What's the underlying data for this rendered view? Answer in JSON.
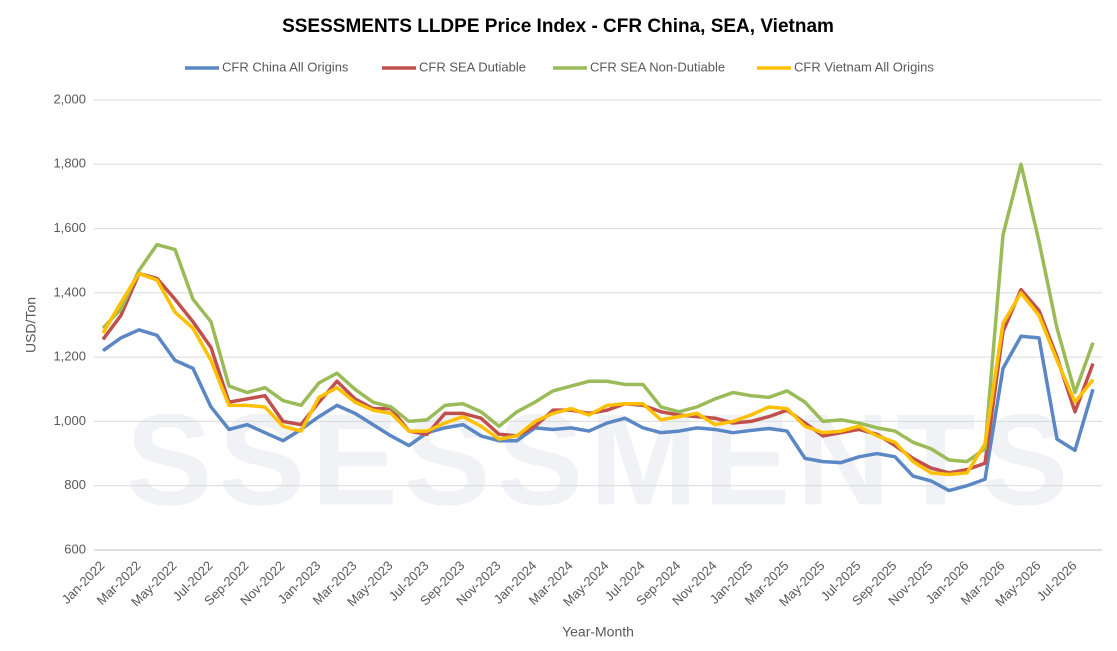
{
  "chart_data": {
    "type": "line",
    "title": "SSESSMENTS LLDPE Price Index - CFR China, SEA, Vietnam",
    "watermark": "SSESSMENTS",
    "xlabel": "Year-Month",
    "ylabel": "USD/Ton",
    "categories": [
      "Jan-2022",
      null,
      "Mar-2022",
      null,
      "May-2022",
      null,
      "Jul-2022",
      null,
      "Sep-2022",
      null,
      "Nov-2022",
      null,
      "Jan-2023",
      null,
      "Mar-2023",
      null,
      "May-2023",
      null,
      "Jul-2023",
      null,
      "Sep-2023",
      null,
      "Nov-2023",
      null,
      "Jan-2024",
      null,
      "Mar-2024",
      null,
      "May-2024",
      null,
      "Jul-2024",
      null,
      "Sep-2024",
      null,
      "Nov-2024",
      null,
      "Jan-2025",
      null,
      "Mar-2025",
      null,
      "May-2025",
      null,
      "Jul-2025",
      null,
      "Sep-2025",
      null,
      "Nov-2025",
      null,
      "Jan-2026",
      null,
      "Mar-2026",
      null,
      "May-2026",
      null,
      "Jul-2026",
      null
    ],
    "series": [
      {
        "name": "CFR China All Origins",
        "color": "#5b87c5",
        "values": [
          1220,
          1260,
          1285,
          1268,
          1190,
          1165,
          1045,
          975,
          990,
          965,
          940,
          975,
          1015,
          1050,
          1025,
          990,
          955,
          925,
          965,
          980,
          990,
          955,
          940,
          940,
          980,
          975,
          980,
          970,
          995,
          1010,
          980,
          965,
          970,
          980,
          975,
          965,
          972,
          978,
          970,
          885,
          875,
          872,
          890,
          900,
          890,
          830,
          815,
          785,
          800,
          820,
          1165,
          1265,
          1260,
          945,
          910,
          1100
        ]
      },
      {
        "name": "CFR SEA Dutiable",
        "color": "#c0504d",
        "values": [
          1255,
          1330,
          1460,
          1445,
          1380,
          1310,
          1230,
          1060,
          1070,
          1080,
          1000,
          990,
          1060,
          1125,
          1070,
          1040,
          1040,
          970,
          960,
          1025,
          1025,
          1010,
          960,
          955,
          985,
          1035,
          1035,
          1025,
          1035,
          1055,
          1050,
          1030,
          1020,
          1015,
          1010,
          995,
          1000,
          1015,
          1035,
          995,
          955,
          965,
          975,
          960,
          925,
          885,
          855,
          840,
          850,
          870,
          1280,
          1410,
          1345,
          1200,
          1030,
          1180
        ]
      },
      {
        "name": "CFR SEA Non-Dutiable",
        "color": "#9bbb59",
        "values": [
          1290,
          1350,
          1470,
          1550,
          1535,
          1380,
          1310,
          1110,
          1090,
          1105,
          1065,
          1050,
          1120,
          1150,
          1100,
          1060,
          1045,
          1000,
          1005,
          1050,
          1055,
          1030,
          985,
          1030,
          1060,
          1095,
          1110,
          1125,
          1125,
          1115,
          1115,
          1045,
          1030,
          1045,
          1070,
          1090,
          1080,
          1075,
          1095,
          1060,
          1000,
          1005,
          995,
          980,
          970,
          935,
          915,
          880,
          875,
          915,
          1580,
          1800,
          1560,
          1290,
          1090,
          1245
        ]
      },
      {
        "name": "CFR Vietnam All Origins",
        "color": "#ffc000",
        "values": [
          1275,
          1370,
          1460,
          1440,
          1340,
          1290,
          1190,
          1050,
          1050,
          1045,
          985,
          970,
          1075,
          1105,
          1060,
          1035,
          1025,
          970,
          970,
          995,
          1015,
          985,
          945,
          955,
          1000,
          1025,
          1040,
          1020,
          1050,
          1055,
          1055,
          1005,
          1015,
          1025,
          990,
          1000,
          1020,
          1045,
          1040,
          985,
          965,
          970,
          985,
          955,
          935,
          875,
          840,
          835,
          840,
          930,
          1305,
          1400,
          1330,
          1190,
          1060,
          1130
        ]
      }
    ],
    "ylim": [
      600,
      2000
    ],
    "yticks": [
      600,
      800,
      {
        "value": 1000,
        "label": "1,000"
      },
      {
        "value": 1200,
        "label": "1,200"
      },
      {
        "value": 1400,
        "label": "1,400"
      },
      {
        "value": 1600,
        "label": "1,600"
      },
      {
        "value": 1800,
        "label": "1,800"
      },
      {
        "value": 2000,
        "label": "2,000"
      }
    ],
    "grid": true,
    "legend": "top"
  }
}
